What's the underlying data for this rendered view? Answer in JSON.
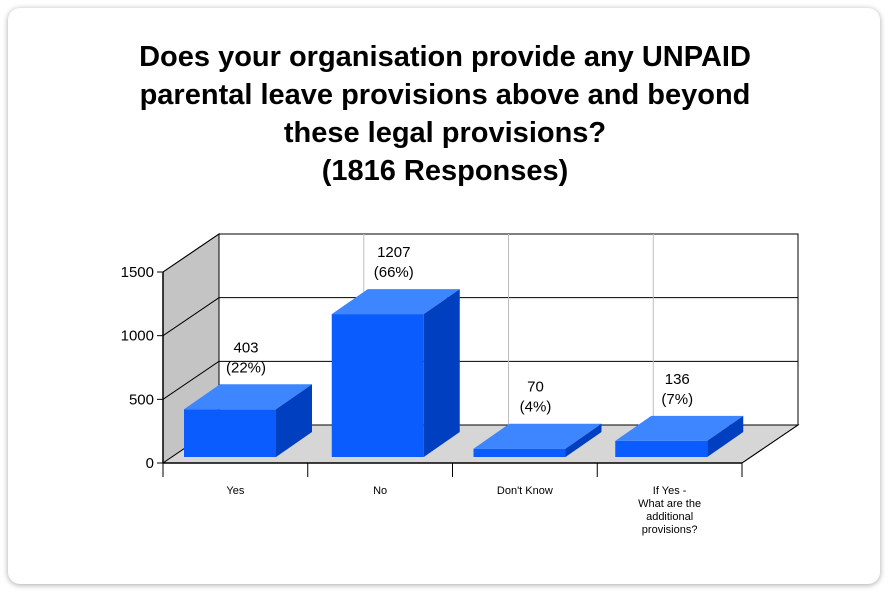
{
  "title_lines": [
    "Does your organisation provide any UNPAID",
    "parental leave provisions above and beyond",
    "these legal provisions?",
    "(1816  Responses)"
  ],
  "chart_data": {
    "type": "bar",
    "title": "Does your organisation provide any UNPAID parental leave provisions above and beyond these legal provisions? (1816  Responses)",
    "categories": [
      [
        "Yes"
      ],
      [
        "No"
      ],
      [
        "Don't Know"
      ],
      [
        "If Yes -",
        "What are the",
        "additional",
        "provisions?"
      ]
    ],
    "values": [
      403,
      1207,
      70,
      136
    ],
    "data_labels": [
      [
        "403",
        "(22%)"
      ],
      [
        "1207",
        "(66%)"
      ],
      [
        "70",
        "(4%)"
      ],
      [
        "136",
        "(7%)"
      ]
    ],
    "y_ticks": [
      0,
      500,
      1000,
      1500
    ],
    "ylim": [
      0,
      1500
    ],
    "grid": true,
    "style": "3d",
    "bar_color": "#0a5cff"
  }
}
